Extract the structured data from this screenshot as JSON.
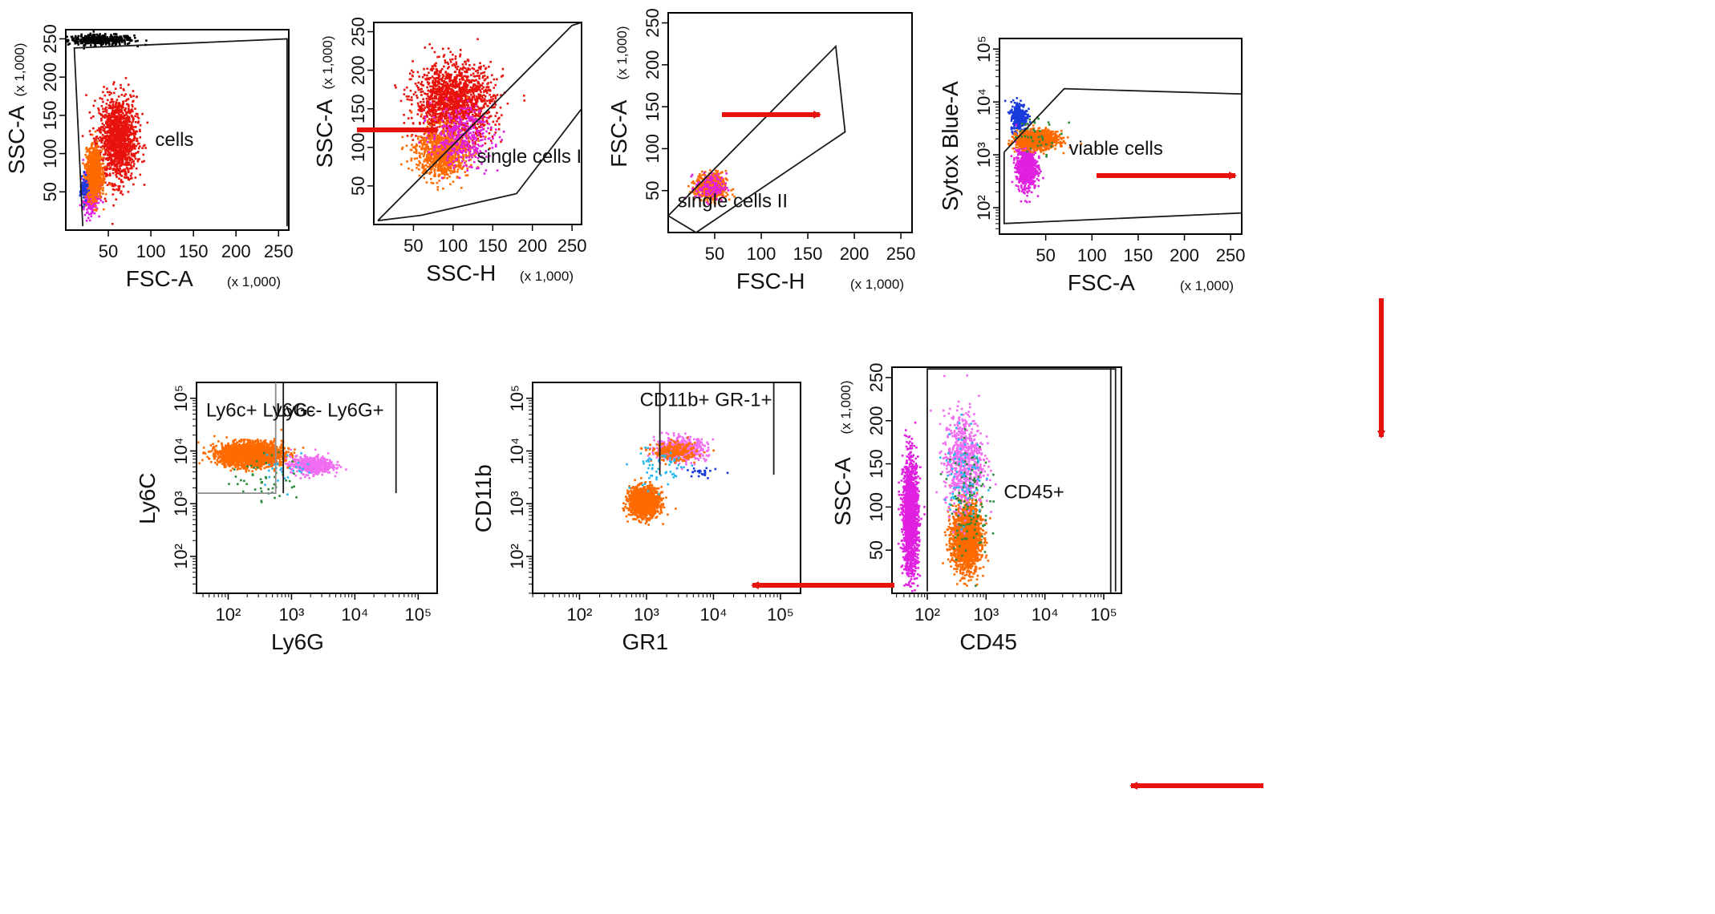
{
  "colors": {
    "arrow": "#e8120c",
    "frame": "#000000",
    "gate": "#1a1a1a",
    "gate_grey": "#8c8c8c"
  },
  "scale_note": "(x 1,000)",
  "chart_data": [
    {
      "id": "p1",
      "type": "scatter",
      "title": "",
      "xlabel": "FSC-A",
      "ylabel": "SSC-A",
      "xunit": "(x 1,000)",
      "yunit": "(x 1,000)",
      "xlim": [
        0,
        262
      ],
      "ylim": [
        0,
        262
      ],
      "xticks": [
        50,
        100,
        150,
        200,
        250
      ],
      "yticks": [
        50,
        100,
        150,
        200,
        250
      ],
      "gates": [
        {
          "name": "cells",
          "label_pos": [
            105,
            110
          ]
        }
      ],
      "populations": [
        {
          "name": "debris",
          "color": "#000000",
          "center": [
            40,
            250
          ],
          "spread": [
            35,
            6
          ],
          "count": 420
        },
        {
          "name": "red",
          "color": "#e8120c",
          "center": [
            60,
            120
          ],
          "spread": [
            20,
            50
          ],
          "count": 1400
        },
        {
          "name": "magenta",
          "color": "#e020e0",
          "center": [
            28,
            50
          ],
          "spread": [
            8,
            22
          ],
          "count": 450
        },
        {
          "name": "orange",
          "color": "#ff6a00",
          "center": [
            32,
            75
          ],
          "spread": [
            8,
            28
          ],
          "count": 1100
        },
        {
          "name": "blue",
          "color": "#1a3bdc",
          "center": [
            20,
            55
          ],
          "spread": [
            4,
            15
          ],
          "count": 60
        }
      ]
    },
    {
      "id": "p2",
      "type": "scatter",
      "title": "",
      "xlabel": "SSC-H",
      "ylabel": "SSC-A",
      "xunit": "(x 1,000)",
      "yunit": "(x 1,000)",
      "xlim": [
        0,
        262
      ],
      "ylim": [
        0,
        262
      ],
      "xticks": [
        50,
        100,
        150,
        200,
        250
      ],
      "yticks": [
        50,
        100,
        150,
        200,
        250
      ],
      "gates": [
        {
          "name": "single cells I",
          "label_pos": [
            130,
            80
          ]
        }
      ],
      "populations": [
        {
          "name": "red",
          "color": "#e8120c",
          "center": [
            100,
            160
          ],
          "spread": [
            45,
            45
          ],
          "count": 1600
        },
        {
          "name": "orange",
          "color": "#ff6a00",
          "center": [
            85,
            95
          ],
          "spread": [
            30,
            30
          ],
          "count": 900
        },
        {
          "name": "magenta",
          "color": "#e020e0",
          "center": [
            110,
            115
          ],
          "spread": [
            35,
            35
          ],
          "count": 350
        }
      ]
    },
    {
      "id": "p3",
      "type": "scatter",
      "title": "",
      "xlabel": "FSC-H",
      "ylabel": "FSC-A",
      "xunit": "(x 1,000)",
      "yunit": "(x 1,000)",
      "xlim": [
        0,
        262
      ],
      "ylim": [
        0,
        262
      ],
      "xticks": [
        50,
        100,
        150,
        200,
        250
      ],
      "yticks": [
        50,
        100,
        150,
        200,
        250
      ],
      "gates": [
        {
          "name": "single cells II",
          "label_pos": [
            10,
            30
          ]
        }
      ],
      "populations": [
        {
          "name": "orange",
          "color": "#ff6a00",
          "center": [
            45,
            55
          ],
          "spread": [
            15,
            15
          ],
          "count": 500
        },
        {
          "name": "magenta",
          "color": "#e020e0",
          "center": [
            45,
            55
          ],
          "spread": [
            15,
            15
          ],
          "count": 120
        }
      ]
    },
    {
      "id": "p4",
      "type": "scatter",
      "title": "",
      "xlabel": "FSC-A",
      "ylabel": "Sytox Blue-A",
      "xunit": "(x 1,000)",
      "yunit": "",
      "xscale": "linear",
      "yscale": "log",
      "xlim": [
        0,
        262
      ],
      "ylim": [
        1.5,
        5.2
      ],
      "xticks": [
        50,
        100,
        150,
        200,
        250
      ],
      "yticks": [
        2,
        3,
        4,
        5
      ],
      "gates": [
        {
          "name": "viable cells",
          "label_pos": [
            75,
            3.0
          ]
        }
      ],
      "populations": [
        {
          "name": "blue",
          "color": "#1a3bdc",
          "center": [
            20,
            3.75
          ],
          "spread": [
            8,
            0.25
          ],
          "count": 300
        },
        {
          "name": "magenta",
          "color": "#e020e0",
          "center": [
            28,
            2.8
          ],
          "spread": [
            10,
            0.4
          ],
          "count": 700
        },
        {
          "name": "orange",
          "color": "#ff6a00",
          "center": [
            40,
            3.3
          ],
          "spread": [
            20,
            0.15
          ],
          "count": 1100
        },
        {
          "name": "green",
          "color": "#2a8a3a",
          "center": [
            40,
            3.4
          ],
          "spread": [
            25,
            0.3
          ],
          "count": 40
        }
      ]
    },
    {
      "id": "p5",
      "type": "scatter",
      "title": "",
      "xlabel": "CD45",
      "ylabel": "SSC-A",
      "xunit": "",
      "yunit": "(x 1,000)",
      "xscale": "log",
      "yscale": "linear",
      "xlim": [
        1.4,
        5.3
      ],
      "ylim": [
        0,
        262
      ],
      "xticks": [
        2,
        3,
        4,
        5
      ],
      "yticks": [
        50,
        100,
        150,
        200,
        250
      ],
      "gates": [
        {
          "name": "CD45+",
          "label_pos": [
            3.3,
            110
          ]
        }
      ],
      "populations": [
        {
          "name": "magenta-neg",
          "color": "#e020e0",
          "center": [
            1.7,
            90
          ],
          "spread": [
            0.12,
            60
          ],
          "count": 1500
        },
        {
          "name": "orange",
          "color": "#ff6a00",
          "center": [
            2.65,
            65
          ],
          "spread": [
            0.22,
            35
          ],
          "count": 1700
        },
        {
          "name": "pink",
          "color": "#f06cf0",
          "center": [
            2.6,
            155
          ],
          "spread": [
            0.3,
            50
          ],
          "count": 700
        },
        {
          "name": "green",
          "color": "#2a8a3a",
          "center": [
            2.7,
            110
          ],
          "spread": [
            0.3,
            60
          ],
          "count": 120
        },
        {
          "name": "cyan",
          "color": "#27b8f0",
          "center": [
            2.6,
            140
          ],
          "spread": [
            0.3,
            60
          ],
          "count": 80
        }
      ]
    },
    {
      "id": "p6",
      "type": "scatter",
      "title": "",
      "xlabel": "GR1",
      "ylabel": "CD11b",
      "xunit": "",
      "yunit": "",
      "xscale": "log",
      "yscale": "log",
      "xlim": [
        1.3,
        5.3
      ],
      "ylim": [
        1.3,
        5.3
      ],
      "xticks": [
        2,
        3,
        4,
        5
      ],
      "yticks": [
        2,
        3,
        4,
        5
      ],
      "gates": [
        {
          "name": "CD11b+ GR-1+",
          "label_pos": [
            2.9,
            4.85
          ]
        }
      ],
      "populations": [
        {
          "name": "orange",
          "color": "#ff6a00",
          "center": [
            2.95,
            3.05
          ],
          "spread": [
            0.2,
            0.25
          ],
          "count": 1400
        },
        {
          "name": "pink",
          "color": "#f06cf0",
          "center": [
            3.5,
            4.05
          ],
          "spread": [
            0.35,
            0.2
          ],
          "count": 500
        },
        {
          "name": "orange-hi",
          "color": "#ff6a00",
          "center": [
            3.4,
            4.0
          ],
          "spread": [
            0.3,
            0.15
          ],
          "count": 250
        },
        {
          "name": "cyan",
          "color": "#27b8f0",
          "center": [
            3.2,
            3.7
          ],
          "spread": [
            0.4,
            0.4
          ],
          "count": 60
        },
        {
          "name": "blue",
          "color": "#1a3bdc",
          "center": [
            3.8,
            3.6
          ],
          "spread": [
            0.2,
            0.1
          ],
          "count": 25
        }
      ]
    },
    {
      "id": "p7",
      "type": "scatter",
      "title": "",
      "xlabel": "Ly6G",
      "ylabel": "Ly6C",
      "xunit": "",
      "yunit": "",
      "xscale": "log",
      "yscale": "log",
      "xlim": [
        1.5,
        5.3
      ],
      "ylim": [
        1.3,
        5.3
      ],
      "xticks": [
        2,
        3,
        4,
        5
      ],
      "yticks": [
        2,
        3,
        4,
        5
      ],
      "gates": [
        {
          "name": "Ly6c+ Ly6G-",
          "label_pos": [
            1.65,
            4.65
          ]
        },
        {
          "name": "Ly6c- Ly6G+",
          "label_pos": [
            2.75,
            4.65
          ]
        }
      ],
      "populations": [
        {
          "name": "orange",
          "color": "#ff6a00",
          "center": [
            2.35,
            3.95
          ],
          "spread": [
            0.45,
            0.2
          ],
          "count": 2200
        },
        {
          "name": "pink",
          "color": "#f06cf0",
          "center": [
            3.3,
            3.75
          ],
          "spread": [
            0.3,
            0.15
          ],
          "count": 500
        },
        {
          "name": "green",
          "color": "#2a8a3a",
          "center": [
            2.6,
            3.5
          ],
          "spread": [
            0.5,
            0.4
          ],
          "count": 50
        },
        {
          "name": "cyan",
          "color": "#27b8f0",
          "center": [
            2.9,
            3.7
          ],
          "spread": [
            0.4,
            0.3
          ],
          "count": 30
        }
      ]
    }
  ]
}
